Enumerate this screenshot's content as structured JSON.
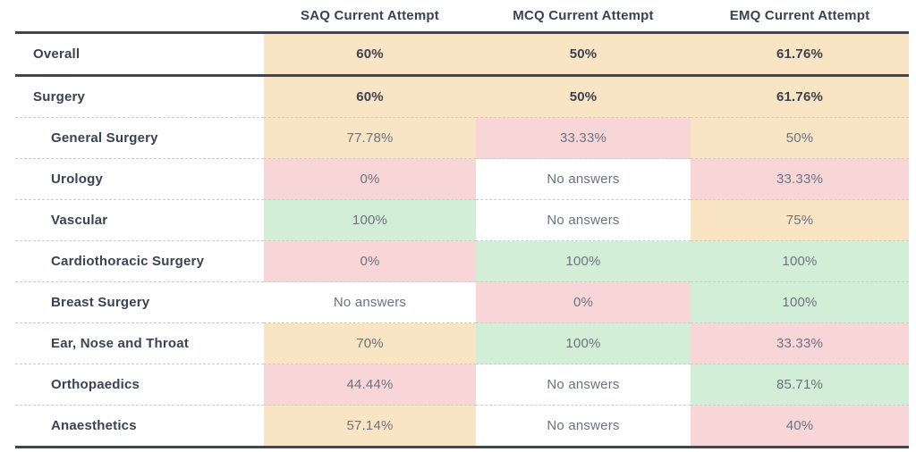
{
  "table": {
    "columns": [
      {
        "label": "SAQ Current Attempt"
      },
      {
        "label": "MCQ Current Attempt"
      },
      {
        "label": "EMQ Current Attempt"
      }
    ],
    "rows": [
      {
        "label": "Overall",
        "level": 0,
        "emphasis": true,
        "cells": [
          {
            "value": "60%",
            "tone": "warn"
          },
          {
            "value": "50%",
            "tone": "warn"
          },
          {
            "value": "61.76%",
            "tone": "warn"
          }
        ]
      },
      {
        "label": "Surgery",
        "level": 0,
        "emphasis": true,
        "cells": [
          {
            "value": "60%",
            "tone": "warn"
          },
          {
            "value": "50%",
            "tone": "warn"
          },
          {
            "value": "61.76%",
            "tone": "warn"
          }
        ]
      },
      {
        "label": "General Surgery",
        "level": 1,
        "emphasis": false,
        "cells": [
          {
            "value": "77.78%",
            "tone": "warn"
          },
          {
            "value": "33.33%",
            "tone": "bad"
          },
          {
            "value": "50%",
            "tone": "warn"
          }
        ]
      },
      {
        "label": "Urology",
        "level": 1,
        "emphasis": false,
        "cells": [
          {
            "value": "0%",
            "tone": "bad"
          },
          {
            "value": "No answers",
            "tone": "none"
          },
          {
            "value": "33.33%",
            "tone": "bad"
          }
        ]
      },
      {
        "label": "Vascular",
        "level": 1,
        "emphasis": false,
        "cells": [
          {
            "value": "100%",
            "tone": "good"
          },
          {
            "value": "No answers",
            "tone": "none"
          },
          {
            "value": "75%",
            "tone": "warn"
          }
        ]
      },
      {
        "label": "Cardiothoracic Surgery",
        "level": 1,
        "emphasis": false,
        "cells": [
          {
            "value": "0%",
            "tone": "bad"
          },
          {
            "value": "100%",
            "tone": "good"
          },
          {
            "value": "100%",
            "tone": "good"
          }
        ]
      },
      {
        "label": "Breast Surgery",
        "level": 1,
        "emphasis": false,
        "cells": [
          {
            "value": "No answers",
            "tone": "none"
          },
          {
            "value": "0%",
            "tone": "bad"
          },
          {
            "value": "100%",
            "tone": "good"
          }
        ]
      },
      {
        "label": "Ear, Nose and Throat",
        "level": 1,
        "emphasis": false,
        "cells": [
          {
            "value": "70%",
            "tone": "warn"
          },
          {
            "value": "100%",
            "tone": "good"
          },
          {
            "value": "33.33%",
            "tone": "bad"
          }
        ]
      },
      {
        "label": "Orthopaedics",
        "level": 1,
        "emphasis": false,
        "cells": [
          {
            "value": "44.44%",
            "tone": "bad"
          },
          {
            "value": "No answers",
            "tone": "none"
          },
          {
            "value": "85.71%",
            "tone": "good"
          }
        ]
      },
      {
        "label": "Anaesthetics",
        "level": 1,
        "emphasis": false,
        "cells": [
          {
            "value": "57.14%",
            "tone": "warn"
          },
          {
            "value": "No answers",
            "tone": "none"
          },
          {
            "value": "40%",
            "tone": "bad"
          }
        ]
      }
    ]
  },
  "colors": {
    "good": "#d3eed7",
    "warn": "#f9e5c3",
    "bad": "#f8d6d8",
    "none": "#ffffff",
    "heavy_border": "#3d4757",
    "light_border": "#c9ced6",
    "label_text": "#3a4254",
    "value_text": "#6b7380"
  }
}
